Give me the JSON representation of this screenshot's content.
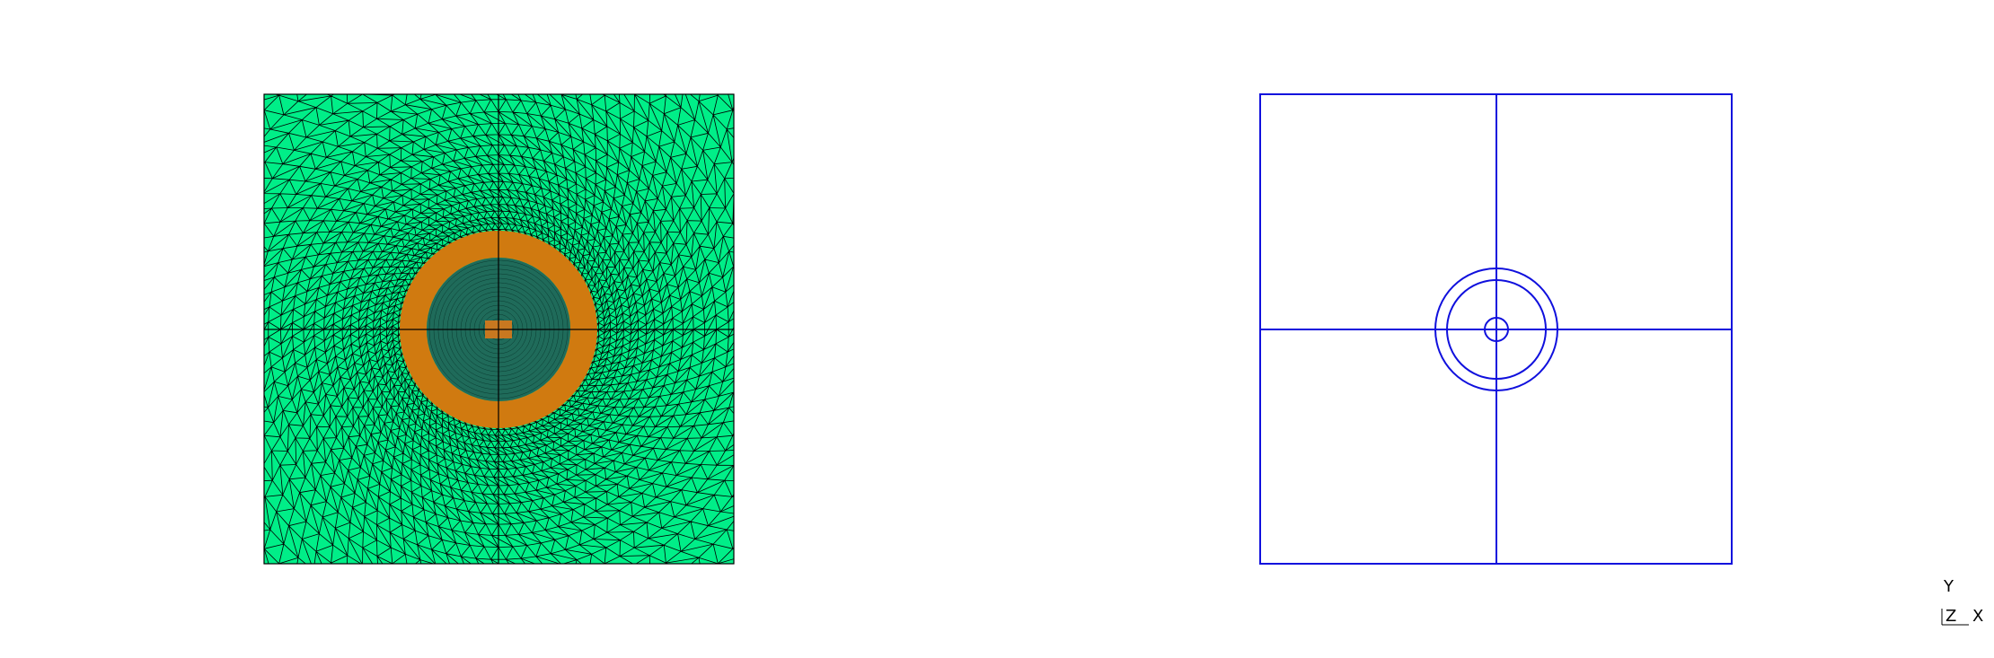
{
  "mesh_view": {
    "domain_fill": "#00ee88",
    "mesh_line_color": "#000000",
    "refined_ring_fill": "#d07a10",
    "inner_core_fill": "#1f6b5a",
    "center_fill": "#c87820"
  },
  "geometry_view": {
    "edge_color": "#1010dd"
  },
  "axis_triad": {
    "y_label": "Y",
    "z_label": "Z",
    "x_label": "X"
  }
}
